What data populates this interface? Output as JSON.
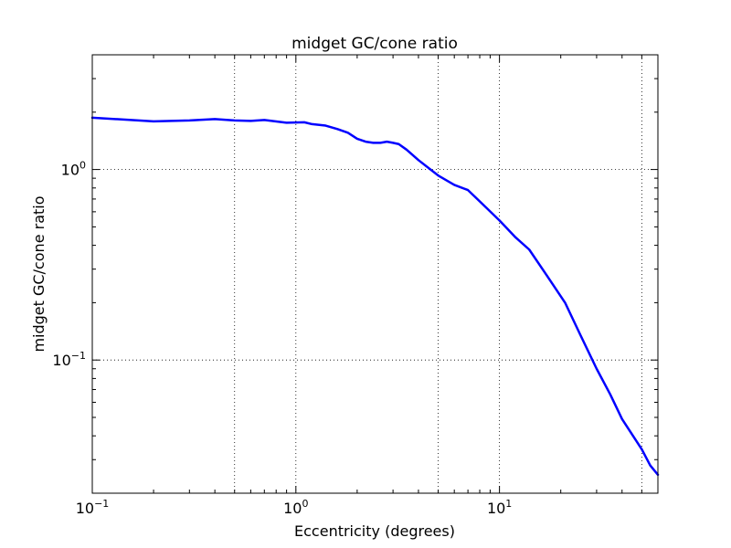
{
  "chart_data": {
    "type": "line",
    "title": "midget GC/cone ratio",
    "xlabel": "Eccentricity (degrees)",
    "ylabel": "midget GC/cone ratio",
    "xscale": "log",
    "yscale": "log",
    "xlim": [
      0.1,
      60
    ],
    "ylim": [
      0.02,
      4
    ],
    "grid": true,
    "xticks": [
      {
        "value": 0.1,
        "base": "10",
        "exp": "−1"
      },
      {
        "value": 1,
        "base": "10",
        "exp": "0"
      },
      {
        "value": 10,
        "base": "10",
        "exp": "1"
      }
    ],
    "yticks": [
      {
        "value": 0.1,
        "base": "10",
        "exp": "−1"
      },
      {
        "value": 1,
        "base": "10",
        "exp": "0"
      }
    ],
    "x_dotted_gridlines": [
      0.5,
      1,
      5,
      10,
      50
    ],
    "series": [
      {
        "color": "#0000ff",
        "x": [
          0.1,
          0.2,
          0.3,
          0.4,
          0.5,
          0.6,
          0.7,
          0.9,
          1.1,
          1.2,
          1.4,
          1.6,
          1.8,
          2.0,
          2.2,
          2.4,
          2.6,
          2.8,
          3.0,
          3.2,
          3.5,
          4.0,
          5.0,
          6.0,
          7.0,
          8.0,
          10.0,
          12.0,
          14.0,
          17.0,
          21.0,
          25.0,
          30.0,
          35.0,
          40.0,
          50.0,
          55.0,
          60.0
        ],
        "y": [
          1.87,
          1.79,
          1.81,
          1.84,
          1.81,
          1.8,
          1.82,
          1.76,
          1.77,
          1.73,
          1.7,
          1.63,
          1.56,
          1.45,
          1.4,
          1.38,
          1.38,
          1.4,
          1.38,
          1.36,
          1.27,
          1.12,
          0.93,
          0.83,
          0.78,
          0.68,
          0.54,
          0.44,
          0.38,
          0.28,
          0.2,
          0.135,
          0.09,
          0.066,
          0.049,
          0.034,
          0.028,
          0.025
        ]
      }
    ]
  }
}
